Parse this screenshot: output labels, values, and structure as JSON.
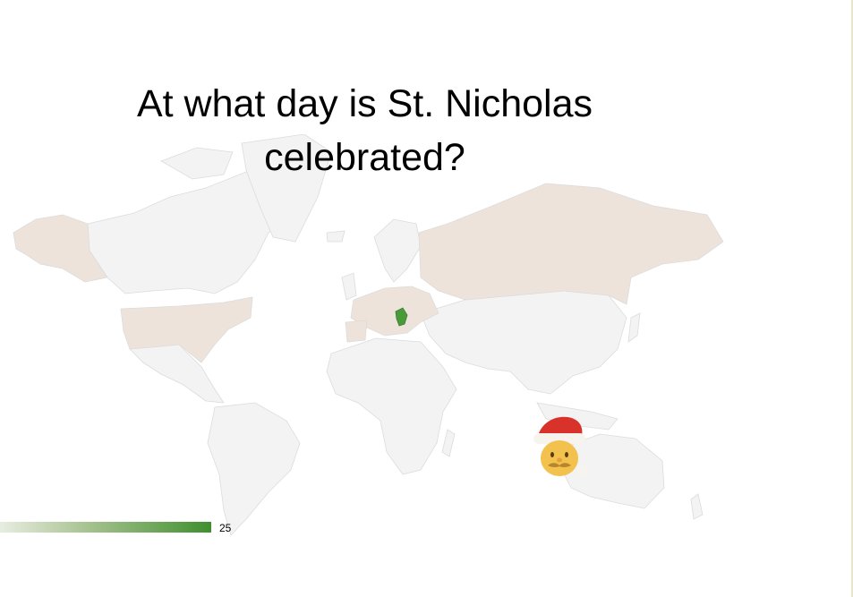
{
  "slide": {
    "title_line1": "At what day is St. Nicholas",
    "title_line2": "celebrated?",
    "slide_number": "25"
  },
  "colors": {
    "land": "#f3f3f3",
    "border": "#dcdcdc",
    "highlight_region": "#ede3da",
    "selected_country": "#4a9a3a",
    "progress_accent": "#3f8f2e"
  },
  "icons": {
    "decoration": "santa-claus-icon"
  }
}
